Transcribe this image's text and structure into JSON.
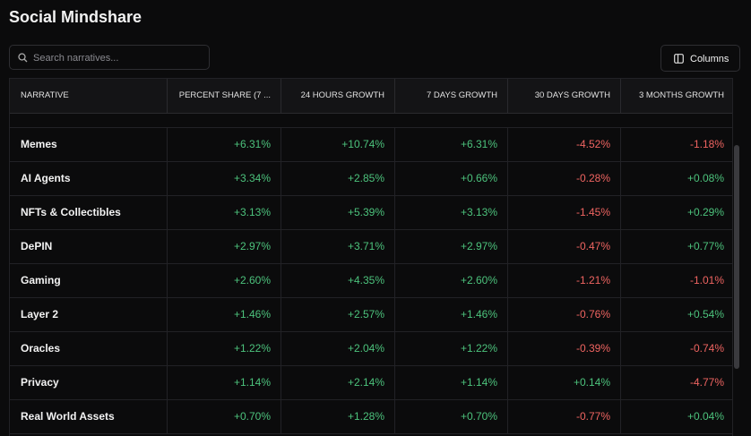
{
  "header": {
    "title": "Social Mindshare"
  },
  "search": {
    "placeholder": "Search narratives..."
  },
  "columns_button": {
    "label": "Columns"
  },
  "table": {
    "columns": [
      "NARRATIVE",
      "PERCENT SHARE (7 ...",
      "24 HOURS GROWTH",
      "7 DAYS GROWTH",
      "30 DAYS GROWTH",
      "3 MONTHS GROWTH"
    ],
    "rows": [
      [
        "Memes",
        "+6.31%",
        "+10.74%",
        "+6.31%",
        "-4.52%",
        "-1.18%"
      ],
      [
        "AI Agents",
        "+3.34%",
        "+2.85%",
        "+0.66%",
        "-0.28%",
        "+0.08%"
      ],
      [
        "NFTs & Collectibles",
        "+3.13%",
        "+5.39%",
        "+3.13%",
        "-1.45%",
        "+0.29%"
      ],
      [
        "DePIN",
        "+2.97%",
        "+3.71%",
        "+2.97%",
        "-0.47%",
        "+0.77%"
      ],
      [
        "Gaming",
        "+2.60%",
        "+4.35%",
        "+2.60%",
        "-1.21%",
        "-1.01%"
      ],
      [
        "Layer 2",
        "+1.46%",
        "+2.57%",
        "+1.46%",
        "-0.76%",
        "+0.54%"
      ],
      [
        "Oracles",
        "+1.22%",
        "+2.04%",
        "+1.22%",
        "-0.39%",
        "-0.74%"
      ],
      [
        "Privacy",
        "+1.14%",
        "+2.14%",
        "+1.14%",
        "+0.14%",
        "-4.77%"
      ],
      [
        "Real World Assets",
        "+0.70%",
        "+1.28%",
        "+0.70%",
        "-0.77%",
        "+0.04%"
      ]
    ]
  }
}
